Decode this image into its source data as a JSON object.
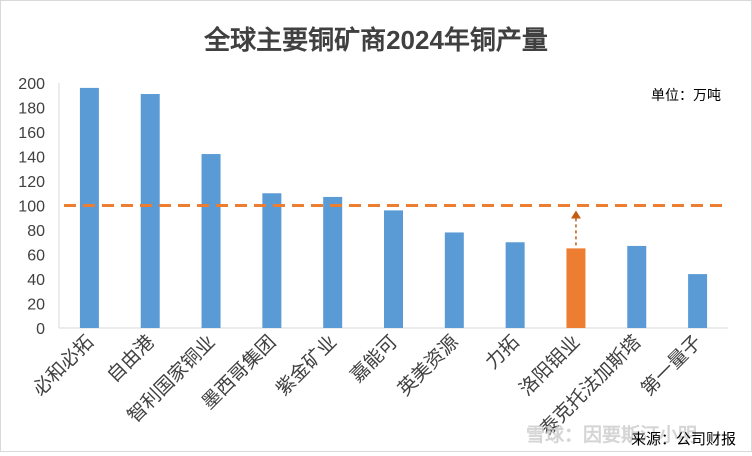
{
  "chart_data": {
    "type": "bar",
    "title": "全球主要铜矿商2024年铜产量",
    "unit_label": "单位：万吨",
    "source_label": "来源：公司财报",
    "watermark": "雪球：因要斯汀小明",
    "categories": [
      "必和必拓",
      "自由港",
      "智利国家铜业",
      "墨西哥集团",
      "紫金矿业",
      "嘉能可",
      "英美资源",
      "力拓",
      "洛阳钼业",
      "泰克托法加斯塔",
      "第一量子"
    ],
    "values": [
      196,
      191,
      142,
      110,
      107,
      96,
      78,
      70,
      65,
      67,
      44
    ],
    "highlight_index": 8,
    "colors": {
      "bar": "#5b9bd5",
      "highlight": "#ed7d31",
      "reference_line": "#ed7d31"
    },
    "reference_value": 100,
    "arrow_target": 100,
    "ylim": [
      0,
      200
    ],
    "ytick_step": 20,
    "yticks": [
      "0",
      "20",
      "40",
      "60",
      "80",
      "100",
      "120",
      "140",
      "160",
      "180",
      "200"
    ],
    "grid": false,
    "xlabel": "",
    "ylabel": ""
  }
}
